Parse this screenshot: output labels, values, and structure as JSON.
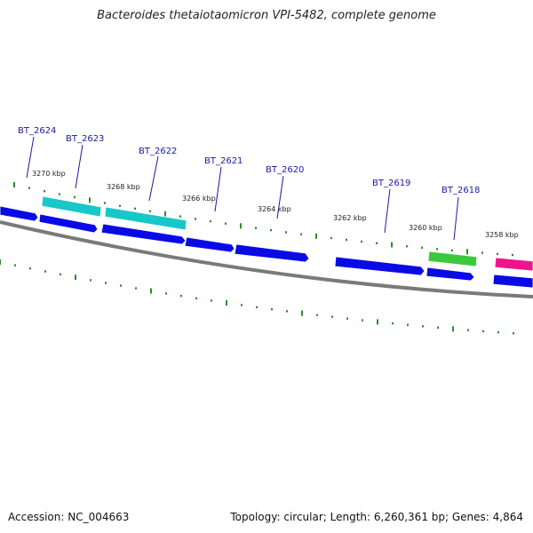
{
  "title": "Bacteroides thetaiotaomicron VPI-5482, complete genome",
  "footer": {
    "accession": "Accession: NC_004663",
    "summary": "Topology: circular; Length: 6,260,361 bp; Genes: 4,864"
  },
  "colors": {
    "backbone": "#7a7a7a",
    "tick": "#2e8b2e",
    "forward_gene": "#0a0ae6",
    "cyan_gene": "#18c8c8",
    "green_gene": "#3cc83c",
    "pink_gene": "#f0148c",
    "label_line": "#1a1aa6"
  },
  "scale_labels": [
    "3270 kbp",
    "3268 kbp",
    "3266 kbp",
    "3264 kbp",
    "3262 kbp",
    "3260 kbp",
    "3258 kbp"
  ],
  "gene_labels": [
    "BT_2624",
    "BT_2623",
    "BT_2622",
    "BT_2621",
    "BT_2620",
    "BT_2619",
    "BT_2618"
  ]
}
